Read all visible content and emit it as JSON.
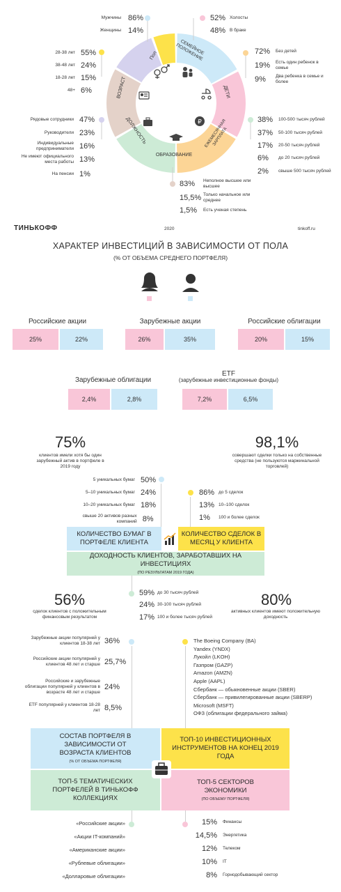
{
  "colors": {
    "pink": "#f9c6d8",
    "blue": "#cde9f8",
    "yellow": "#fde24a",
    "green": "#cdebd6",
    "lilac": "#d5d2ee",
    "beige": "#e4d2c9",
    "peach": "#fcd596"
  },
  "ring": {
    "segments": [
      {
        "label": "Пол",
        "color": "#cde9f8",
        "start": -90,
        "end": -28,
        "icon": "gender-icon"
      },
      {
        "label": "Семейное положение",
        "color": "#f9c6d8",
        "start": -28,
        "end": 30,
        "icon": "family-icon"
      },
      {
        "label": "Дети",
        "color": "#fcd596",
        "start": 30,
        "end": 90,
        "icon": "stroller-icon"
      },
      {
        "label": "Ежемесячная зарплата",
        "color": "#cdebd6",
        "start": 90,
        "end": 150,
        "icon": "ruble-icon"
      },
      {
        "label": "Образование",
        "color": "#e4d2c9",
        "start": 150,
        "end": 210,
        "icon": "graduation-cap-icon"
      },
      {
        "label": "Должность",
        "color": "#d5d2ee",
        "start": 210,
        "end": 250,
        "icon": "briefcase-icon"
      },
      {
        "label": "Возраст",
        "color": "#fde24a",
        "start": 250,
        "end": 270,
        "icon": "id-card-icon"
      }
    ]
  },
  "gender": {
    "rows": [
      {
        "label": "Мужчины",
        "value": "86%"
      },
      {
        "label": "Женщины",
        "value": "14%"
      }
    ]
  },
  "marital": {
    "rows": [
      {
        "label": "Холосты",
        "value": "52%"
      },
      {
        "label": "В браке",
        "value": "48%"
      }
    ]
  },
  "age": {
    "rows": [
      {
        "label": "28-38 лет",
        "value": "55%"
      },
      {
        "label": "38-48 лет",
        "value": "24%"
      },
      {
        "label": "18-28 лет",
        "value": "15%"
      },
      {
        "label": "48+",
        "value": "6%"
      }
    ]
  },
  "children": {
    "rows": [
      {
        "label": "Без детей",
        "value": "72%"
      },
      {
        "label": "Есть один ребенок в семье",
        "value": "19%"
      },
      {
        "label": "Два ребенка в семье и более",
        "value": "9%"
      }
    ]
  },
  "position": {
    "rows": [
      {
        "label": "Рядовые сотрудники",
        "value": "47%"
      },
      {
        "label": "Руководители",
        "value": "23%"
      },
      {
        "label": "Индивидуальные предприниматели",
        "value": "16%"
      },
      {
        "label": "Не имеют официального места работы",
        "value": "13%"
      },
      {
        "label": "На пенсии",
        "value": "1%"
      }
    ]
  },
  "salary": {
    "rows": [
      {
        "label": "100-500 тысяч рублей",
        "value": "38%"
      },
      {
        "label": "50-100 тысяч рублей",
        "value": "37%"
      },
      {
        "label": "20-50 тысяч рублей",
        "value": "17%"
      },
      {
        "label": "до 20 тысяч рублей",
        "value": "6%"
      },
      {
        "label": "свыше 500 тысяч рублей",
        "value": "2%"
      }
    ]
  },
  "education": {
    "rows": [
      {
        "label": "Неполное высшее или высшее",
        "value": "83%"
      },
      {
        "label": "Только начальное или среднее",
        "value": "15,5%"
      },
      {
        "label": "Есть ученая степень",
        "value": "1,5%"
      }
    ]
  },
  "footer": {
    "brand": "ТИНЬКОФФ",
    "year": "2020",
    "site": "tinkoff.ru"
  },
  "gender_invest": {
    "title": "ХАРАКТЕР ИНВЕСТИЦИЙ В ЗАВИСИМОСТИ ОТ ПОЛА",
    "subtitle": "(% ОТ ОБЪЕМА СРЕДНЕГО ПОРТФЕЛЯ)",
    "cats": [
      {
        "label": "Российские акции",
        "f": "25%",
        "m": "22%"
      },
      {
        "label": "Зарубежные акции",
        "f": "26%",
        "m": "35%"
      },
      {
        "label": "Российские облигации",
        "f": "20%",
        "m": "15%"
      },
      {
        "label": "Зарубежные облигации",
        "f": "2,4%",
        "m": "2,8%"
      },
      {
        "label": "ETF",
        "sub": "(зарубежные инвестиционные фонды)",
        "f": "7,2%",
        "m": "6,5%"
      }
    ]
  },
  "foreign": {
    "value": "75%",
    "text": "клиентов имели хотя бы один зарубежный актив в портфеле в 2019 году"
  },
  "own": {
    "value": "98,1%",
    "text": "совершают сделки только на собственные средства (не пользуются маржинальной торговлей)"
  },
  "securities": {
    "rows": [
      {
        "label": "5 уникальных бумаг",
        "value": "50%"
      },
      {
        "label": "5–10 уникальных бумаг",
        "value": "24%"
      },
      {
        "label": "10–20 уникальных бумаг",
        "value": "18%"
      },
      {
        "label": "свыше 20 активов разных компаний",
        "value": "8%"
      }
    ]
  },
  "deals": {
    "rows": [
      {
        "label": "до 5 сделок",
        "value": "86%"
      },
      {
        "label": "10–100 сделок",
        "value": "13%"
      },
      {
        "label": "100 и более сделок",
        "value": "1%"
      }
    ]
  },
  "blocks1": {
    "papers": "Количество бумаг в портфеле клиента",
    "deals": "Количество сделок в месяц у клиента",
    "profit": "Доходность клиентов, заработавших на инвестициях",
    "profit_note": "(по результатам 2019 года)"
  },
  "positive": {
    "value": "56%",
    "text": "сделок клиентов с положительным финансовым результатом"
  },
  "active": {
    "value": "80%",
    "text": "активных клиентов имеют положительную доходность"
  },
  "profit_rows": [
    {
      "label": "до 30 тысяч рублей",
      "value": "59%"
    },
    {
      "label": "30-100 тысяч рублей",
      "value": "24%"
    },
    {
      "label": "100 и более тысяч рублей",
      "value": "17%"
    }
  ],
  "age_portfolio": [
    {
      "label": "Зарубежные акции популярней у клиентов 18-38 лет",
      "value": "36%"
    },
    {
      "label": "Российские акции популярней у клиентов 48 лет и старше",
      "value": "25,7%"
    },
    {
      "label": "Российские и зарубежные облигации популярней у клиентов в возрасте 48 лет и старше",
      "value": "24%"
    },
    {
      "label": "ETF популярней у клиентов 18-28 лет",
      "value": "8,5%"
    }
  ],
  "top10": [
    "The Boeing Company (BA)",
    "Yandex (YNDX)",
    "Лукойл (LKOH)",
    "Газпром (GAZP)",
    "Amazon (AMZN)",
    "Apple (AAPL)",
    "Сбербанк — обыкновенные акции (SBER)",
    "Сбербанк — привилегированные акции (SBERP)",
    "Microsoft (MSFT)",
    "ОФЗ (облигации федерального займа)"
  ],
  "blocks2": {
    "age": "Состав портфеля в зависимости от возраста клиентов",
    "age_note": "(% от объема портфеля)",
    "top10": "Топ-10 инвестиционных инструментов на конец 2019 года",
    "top5p": "Топ-5 тематических портфелей в Тинькофф коллекциях",
    "top5s": "Топ-5 секторов экономики",
    "top5s_note": "(по объему портфеля)"
  },
  "portfolios": [
    "«Российские акции»",
    "«Акции IT-компаний»",
    "«Американские акции»",
    "«Рублевые облигации»",
    "«Долларовые облигации»"
  ],
  "sectors": [
    {
      "label": "Финансы",
      "value": "15%"
    },
    {
      "label": "Энергетика",
      "value": "14,5%"
    },
    {
      "label": "Телеком",
      "value": "12%"
    },
    {
      "label": "IT",
      "value": "10%"
    },
    {
      "label": "Горнодобывающий сектор",
      "value": "8%"
    }
  ]
}
